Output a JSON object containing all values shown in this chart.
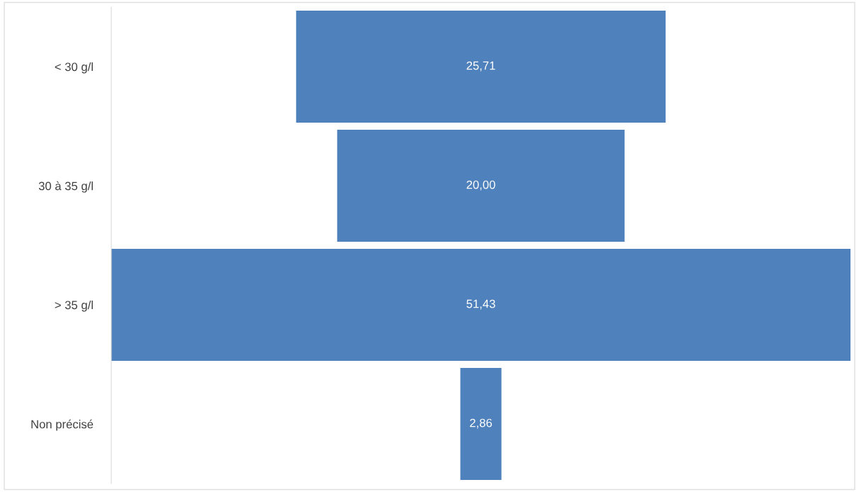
{
  "chart_data": {
    "type": "other",
    "categories": [
      "< 30 g/l",
      "30 à 35 g/l",
      "> 35 g/l",
      "Non précisé"
    ],
    "values": [
      25.71,
      20.0,
      51.43,
      2.86
    ],
    "value_labels": [
      "25,71",
      "20,00",
      "51,43",
      "2,86"
    ],
    "color": "#4f81bd"
  }
}
